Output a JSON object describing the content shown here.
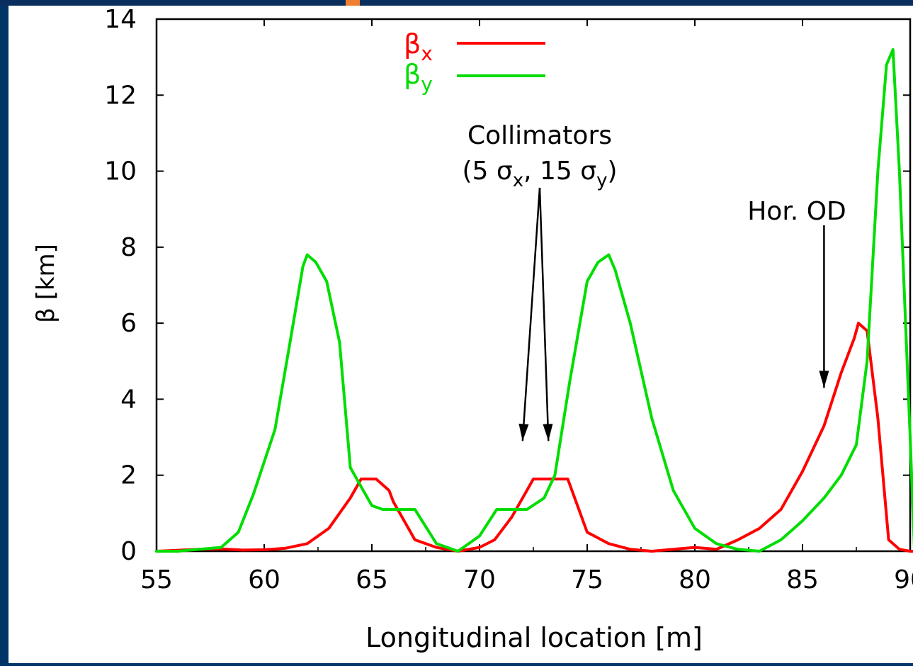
{
  "colors": {
    "background_frame": "#003366",
    "panel": "#ffffff",
    "axis": "#000000",
    "beta_x": "#ff0000",
    "beta_y": "#00dd00",
    "accent_orange": "#f08030"
  },
  "chart_data": {
    "type": "line",
    "xlabel": "Longitudinal location [m]",
    "ylabel": "β [km]",
    "xlim": [
      55,
      90
    ],
    "ylim": [
      0,
      14
    ],
    "xticks": [
      55,
      60,
      65,
      70,
      75,
      80,
      85,
      90
    ],
    "yticks": [
      0,
      2,
      4,
      6,
      8,
      10,
      12,
      14
    ],
    "grid": false,
    "legend_position": "top-center",
    "legend": [
      {
        "symbol": "β",
        "subscript": "x",
        "series": "beta_x"
      },
      {
        "symbol": "β",
        "subscript": "y",
        "series": "beta_y"
      }
    ],
    "series": [
      {
        "key": "beta_x",
        "color": "#ff0000",
        "x": [
          55,
          57,
          58,
          59,
          60,
          61,
          62,
          63,
          64,
          64.5,
          65.2,
          65.8,
          66,
          67,
          68,
          69,
          70,
          70.7,
          71.5,
          72.5,
          73.2,
          74.1,
          75,
          76,
          77,
          78,
          79,
          80,
          81,
          82,
          83,
          84,
          85,
          86,
          86.8,
          87.4,
          87.6,
          88,
          88.5,
          89,
          89.5,
          90,
          90.2
        ],
        "y": [
          0,
          0.05,
          0.06,
          0.03,
          0.04,
          0.08,
          0.2,
          0.6,
          1.4,
          1.9,
          1.9,
          1.6,
          1.3,
          0.3,
          0.1,
          0,
          0.1,
          0.3,
          0.9,
          1.9,
          1.9,
          1.9,
          0.5,
          0.2,
          0.05,
          0,
          0.05,
          0.1,
          0.05,
          0.3,
          0.6,
          1.1,
          2.1,
          3.3,
          4.7,
          5.6,
          6.0,
          5.8,
          3.5,
          0.3,
          0.05,
          0,
          0
        ]
      },
      {
        "key": "beta_y",
        "color": "#00dd00",
        "x": [
          55,
          56,
          57,
          58,
          58.8,
          59.5,
          60.5,
          61.2,
          61.8,
          62,
          62.4,
          62.9,
          63.5,
          64,
          64.5,
          65,
          65.5,
          66,
          67,
          68,
          69,
          70,
          70.8,
          71.5,
          72.2,
          73,
          73.5,
          74.2,
          75,
          75.5,
          76,
          76.3,
          77,
          78,
          79,
          80,
          81,
          82,
          83,
          84,
          85,
          86,
          86.8,
          87.5,
          88,
          88.5,
          88.9,
          89.2,
          89.5,
          90,
          90.2
        ],
        "y": [
          0,
          0,
          0.05,
          0.1,
          0.5,
          1.5,
          3.2,
          5.5,
          7.5,
          7.8,
          7.6,
          7.1,
          5.5,
          2.2,
          1.7,
          1.2,
          1.1,
          1.1,
          1.1,
          0.2,
          0,
          0.4,
          1.1,
          1.1,
          1.1,
          1.4,
          2.0,
          4.5,
          7.1,
          7.6,
          7.8,
          7.4,
          6.0,
          3.5,
          1.6,
          0.6,
          0.2,
          0.05,
          0,
          0.3,
          0.8,
          1.4,
          2.0,
          2.8,
          5.0,
          10.0,
          12.8,
          13.2,
          10.0,
          3.0,
          0
        ]
      }
    ],
    "annotations": [
      {
        "kind": "arrow-label",
        "lines": [
          "Collimators",
          "(5 σ",
          "x",
          ", 15 σ",
          "y",
          ")"
        ],
        "points_to_x": [
          72,
          73.2
        ],
        "points_to_y": 2.9
      },
      {
        "kind": "arrow-label",
        "text": "Hor. OD",
        "points_to_x": 86,
        "points_to_y": 4.3
      }
    ],
    "annotation_text": {
      "collimators_line1": "Collimators",
      "collimators_open": "(5 σ",
      "collimators_sub_x": "x",
      "collimators_mid": ", 15 σ",
      "collimators_sub_y": "y",
      "collimators_close": ")",
      "hor_od": "Hor. OD"
    }
  }
}
